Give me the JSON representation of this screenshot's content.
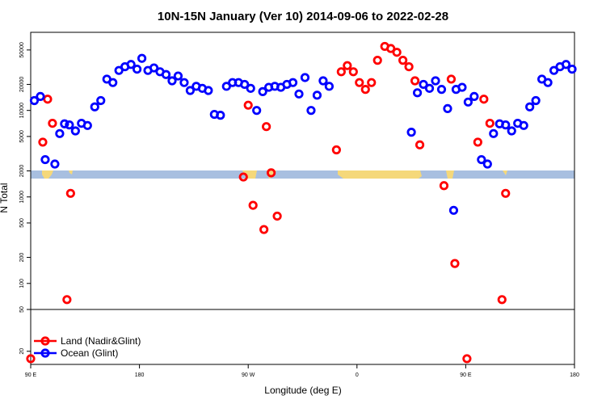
{
  "chart_data": {
    "type": "scatter",
    "title": "10N-15N January (Ver 10)   2014-09-06 to 2022-02-28",
    "xlabel": "Longitude (deg E)",
    "ylabel": "N Total",
    "x_ticks": [
      {
        "value": 90,
        "label": "90 E"
      },
      {
        "value": 180,
        "label": "180"
      },
      {
        "value": 270,
        "label": "90 W"
      },
      {
        "value": 360,
        "label": "0"
      },
      {
        "value": 450,
        "label": "90 E"
      },
      {
        "value": 540,
        "label": "180"
      }
    ],
    "xlim": [
      90,
      540
    ],
    "y_scale": "log",
    "upper_panel": {
      "ylim": [
        50,
        80000
      ],
      "y_ticks": [
        {
          "value": 50,
          "label": "50"
        },
        {
          "value": 100,
          "label": "100"
        },
        {
          "value": 200,
          "label": "200"
        },
        {
          "value": 500,
          "label": "500"
        },
        {
          "value": 1000,
          "label": "1000"
        },
        {
          "value": 2000,
          "label": "2000"
        },
        {
          "value": 5000,
          "label": "5000"
        },
        {
          "value": 10000,
          "label": "10000"
        },
        {
          "value": 20000,
          "label": "20000"
        },
        {
          "value": 50000,
          "label": "50000"
        }
      ]
    },
    "lower_panel": {
      "ylim": [
        15,
        50
      ],
      "y_ticks": [
        {
          "value": 20,
          "label": "20"
        }
      ]
    },
    "legend": {
      "position": "bottom-left",
      "entries": [
        {
          "name": "Land (Nadir&Glint)",
          "color": "#ff0000"
        },
        {
          "name": "Ocean (Glint)",
          "color": "#0000ff"
        }
      ]
    },
    "series": [
      {
        "name": "Land (Nadir&Glint)",
        "color": "#ff0000",
        "points": [
          [
            90,
            17
          ],
          [
            100,
            4300
          ],
          [
            104,
            13500
          ],
          [
            108,
            7100
          ],
          [
            120,
            65
          ],
          [
            123,
            1100
          ],
          [
            266,
            1700
          ],
          [
            270,
            11500
          ],
          [
            274,
            800
          ],
          [
            283,
            420
          ],
          [
            285,
            6500
          ],
          [
            289,
            1900
          ],
          [
            294,
            600
          ],
          [
            343,
            3500
          ],
          [
            347,
            28000
          ],
          [
            352,
            33000
          ],
          [
            357,
            28000
          ],
          [
            362,
            21000
          ],
          [
            367,
            17500
          ],
          [
            372,
            21000
          ],
          [
            377,
            38000
          ],
          [
            383,
            55000
          ],
          [
            388,
            52000
          ],
          [
            393,
            47000
          ],
          [
            398,
            38000
          ],
          [
            403,
            32000
          ],
          [
            408,
            22000
          ],
          [
            412,
            4000
          ],
          [
            432,
            1350
          ],
          [
            438,
            23000
          ],
          [
            441,
            170
          ],
          [
            451,
            17
          ],
          [
            460,
            4300
          ],
          [
            465,
            13500
          ],
          [
            470,
            7100
          ],
          [
            480,
            65
          ],
          [
            483,
            1100
          ]
        ]
      },
      {
        "name": "Ocean (Glint)",
        "color": "#0000ff",
        "points": [
          [
            93,
            13000
          ],
          [
            98,
            14500
          ],
          [
            102,
            2700
          ],
          [
            110,
            2400
          ],
          [
            114,
            5400
          ],
          [
            118,
            7000
          ],
          [
            122,
            6800
          ],
          [
            127,
            5800
          ],
          [
            132,
            7100
          ],
          [
            137,
            6700
          ],
          [
            143,
            11000
          ],
          [
            148,
            13000
          ],
          [
            153,
            23000
          ],
          [
            158,
            21000
          ],
          [
            163,
            29000
          ],
          [
            168,
            32000
          ],
          [
            173,
            34000
          ],
          [
            178,
            30000
          ],
          [
            182,
            40000
          ],
          [
            187,
            29000
          ],
          [
            192,
            31000
          ],
          [
            197,
            28000
          ],
          [
            202,
            26000
          ],
          [
            207,
            22000
          ],
          [
            212,
            25000
          ],
          [
            217,
            21000
          ],
          [
            222,
            17000
          ],
          [
            227,
            19000
          ],
          [
            232,
            18000
          ],
          [
            237,
            17000
          ],
          [
            242,
            9000
          ],
          [
            247,
            8800
          ],
          [
            252,
            19000
          ],
          [
            257,
            21000
          ],
          [
            262,
            21000
          ],
          [
            267,
            20000
          ],
          [
            272,
            18000
          ],
          [
            277,
            10000
          ],
          [
            282,
            16500
          ],
          [
            287,
            18500
          ],
          [
            292,
            19000
          ],
          [
            297,
            18500
          ],
          [
            302,
            20000
          ],
          [
            307,
            21000
          ],
          [
            312,
            15500
          ],
          [
            317,
            24000
          ],
          [
            322,
            10000
          ],
          [
            327,
            15000
          ],
          [
            332,
            22000
          ],
          [
            337,
            19000
          ],
          [
            405,
            5600
          ],
          [
            410,
            16000
          ],
          [
            415,
            20000
          ],
          [
            420,
            18000
          ],
          [
            425,
            22000
          ],
          [
            430,
            17500
          ],
          [
            435,
            10500
          ],
          [
            442,
            17500
          ],
          [
            447,
            18500
          ],
          [
            452,
            12500
          ],
          [
            457,
            14500
          ],
          [
            463,
            2700
          ],
          [
            468,
            2400
          ],
          [
            473,
            5400
          ],
          [
            478,
            7000
          ],
          [
            483,
            6800
          ],
          [
            488,
            5800
          ],
          [
            493,
            7100
          ],
          [
            498,
            6700
          ],
          [
            503,
            11000
          ],
          [
            508,
            13000
          ],
          [
            513,
            23000
          ],
          [
            518,
            21000
          ],
          [
            523,
            29000
          ],
          [
            528,
            32000
          ],
          [
            533,
            34000
          ],
          [
            538,
            30000
          ],
          [
            440,
            700
          ]
        ]
      }
    ]
  }
}
